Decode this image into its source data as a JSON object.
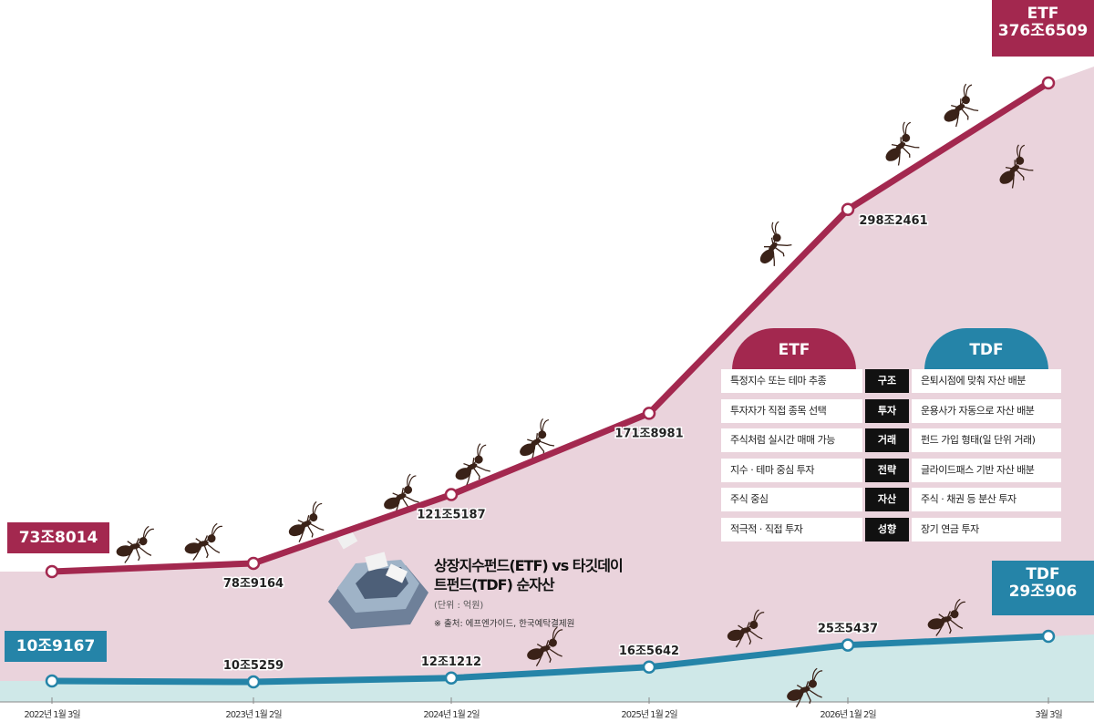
{
  "chart_data": {
    "type": "line",
    "title": "상장지수펀드(ETF) vs 타깃데이트펀드(TDF) 순자산",
    "unit": "(단위 : 억원)",
    "source": "※ 출처: 에프엔가이드, 한국예탁결제원",
    "x": [
      "2022년 1월 3일",
      "2023년 1월 2일",
      "2024년 1월 2일",
      "2025년 1월 2일",
      "2026년 1월 2일",
      "3월 3일"
    ],
    "series": [
      {
        "name": "ETF",
        "color": "#a3284f",
        "values": [
          738014,
          789164,
          1215187,
          1718981,
          2982461,
          3766509
        ],
        "labels": [
          "73조8014",
          "78조9164",
          "121조5187",
          "171조8981",
          "298조2461",
          "376조6509"
        ]
      },
      {
        "name": "TDF",
        "color": "#2584a8",
        "values": [
          109167,
          105259,
          121212,
          165642,
          255437,
          290906
        ],
        "labels": [
          "10조9167",
          "10조5259",
          "12조1212",
          "16조5642",
          "25조5437",
          "29조906"
        ]
      }
    ],
    "fill_colors": {
      "etf_area": "#ead3dc",
      "tdf_area": "#cfe8e8"
    }
  },
  "comparison": {
    "left_header": "ETF",
    "right_header": "TDF",
    "rows": [
      {
        "etf": "특정지수 또는 테마 추종",
        "category": "구조",
        "tdf": "은퇴시점에 맞춰 자산 배분"
      },
      {
        "etf": "투자자가 직접 종목 선택",
        "category": "투자",
        "tdf": "운용사가 자동으로 자산 배분"
      },
      {
        "etf": "주식처럼 실시간 매매 가능",
        "category": "거래",
        "tdf": "펀드 가입 형태(일 단위 거래)"
      },
      {
        "etf": "지수 · 테마 중심 투자",
        "category": "전략",
        "tdf": "글라이드패스 기반 자산 배분"
      },
      {
        "etf": "주식 중심",
        "category": "자산",
        "tdf": "주식 · 채권 등 분산 투자"
      },
      {
        "etf": "적극적 · 직접 투자",
        "category": "성향",
        "tdf": "장기 연금 투자"
      }
    ]
  }
}
